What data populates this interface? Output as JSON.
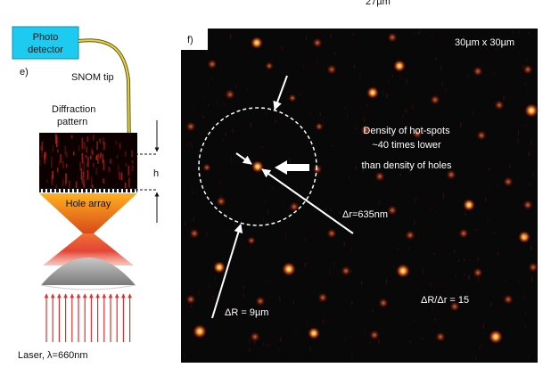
{
  "top_scale_label": "27µm",
  "panel_e": {
    "panel_label": "e)",
    "photo_detector_label": [
      "Photo",
      "detector"
    ],
    "snom_tip_label": "SNOM tip",
    "diffraction_pattern_label": [
      "Diffraction",
      "pattern"
    ],
    "h_label": "h",
    "hole_array_label": "Hole array",
    "laser_label": "Laser, λ=660nm"
  },
  "panel_f": {
    "panel_label": "f)",
    "scan_size_label": "30µm x 30µm",
    "density_note": [
      "Density of hot-spots",
      "~40 times lower",
      "than density of holes"
    ],
    "delta_r_small_label": "Δr=635nm",
    "delta_r_large_label": "ΔR = 9µm",
    "ratio_label": "ΔR/Δr = 15"
  },
  "colors": {
    "detector_box": "#1ecbf0",
    "fiber": "#e8d23a",
    "hole_array_gradient": [
      "#ffb020",
      "#d8601a"
    ],
    "laser_arrows": "#e03030",
    "lens": "#9a9a9a",
    "scan_background": "#080808",
    "hot_spot": "#ffb030"
  }
}
